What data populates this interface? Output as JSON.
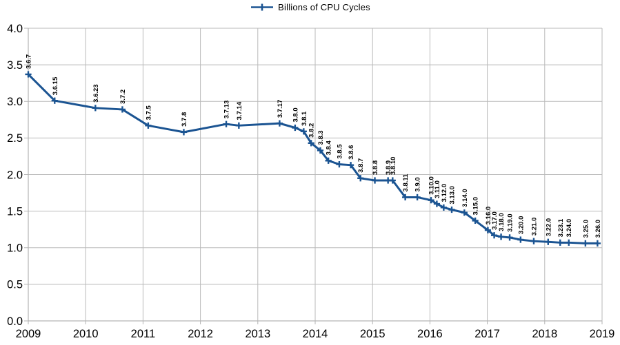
{
  "chart_data": {
    "type": "line",
    "title": "",
    "legend": "Billions of CPU Cycles",
    "legend_position": "top-center",
    "xlabel": "",
    "ylabel": "",
    "xlim": [
      2009,
      2019
    ],
    "ylim": [
      0.0,
      4.0
    ],
    "y_tick_step": 0.5,
    "grid": true,
    "x_ticks": [
      "2009",
      "2010",
      "2011",
      "2012",
      "2013",
      "2014",
      "2015",
      "2016",
      "2017",
      "2018",
      "2019"
    ],
    "y_ticks": [
      "0.0",
      "0.5",
      "1.0",
      "1.5",
      "2.0",
      "2.5",
      "3.0",
      "3.5",
      "4.0"
    ],
    "series": [
      {
        "name": "Billions of CPU Cycles",
        "marker": "plus",
        "color": "#1b5492",
        "points": [
          {
            "label": "3.6.7",
            "x": 2009.0,
            "y": 3.37
          },
          {
            "label": "3.6.15",
            "x": 2009.46,
            "y": 3.01
          },
          {
            "label": "3.6.23",
            "x": 2010.17,
            "y": 2.91
          },
          {
            "label": "3.7.2",
            "x": 2010.64,
            "y": 2.89
          },
          {
            "label": "3.7.5",
            "x": 2011.09,
            "y": 2.67
          },
          {
            "label": "3.7.8",
            "x": 2011.71,
            "y": 2.58
          },
          {
            "label": "3.7.13",
            "x": 2012.45,
            "y": 2.69
          },
          {
            "label": "3.7.14",
            "x": 2012.67,
            "y": 2.67
          },
          {
            "label": "3.7.17",
            "x": 2013.38,
            "y": 2.7
          },
          {
            "label": "3.8.0",
            "x": 2013.65,
            "y": 2.64
          },
          {
            "label": "3.8.1",
            "x": 2013.8,
            "y": 2.59
          },
          {
            "label": "3.8.2",
            "x": 2013.93,
            "y": 2.43
          },
          {
            "label": "3.8.3",
            "x": 2014.09,
            "y": 2.33
          },
          {
            "label": "3.8.4",
            "x": 2014.23,
            "y": 2.19
          },
          {
            "label": "3.8.5",
            "x": 2014.42,
            "y": 2.14
          },
          {
            "label": "3.8.6",
            "x": 2014.62,
            "y": 2.13
          },
          {
            "label": "3.8.7",
            "x": 2014.79,
            "y": 1.95
          },
          {
            "label": "3.8.8",
            "x": 2015.04,
            "y": 1.92
          },
          {
            "label": "3.8.9",
            "x": 2015.27,
            "y": 1.92
          },
          {
            "label": "3.8.10",
            "x": 2015.35,
            "y": 1.92
          },
          {
            "label": "3.8.11",
            "x": 2015.57,
            "y": 1.69
          },
          {
            "label": "3.9.0",
            "x": 2015.78,
            "y": 1.69
          },
          {
            "label": "3.10.0",
            "x": 2016.02,
            "y": 1.65
          },
          {
            "label": "3.11.0",
            "x": 2016.12,
            "y": 1.6
          },
          {
            "label": "3.12.0",
            "x": 2016.24,
            "y": 1.55
          },
          {
            "label": "3.13.0",
            "x": 2016.38,
            "y": 1.52
          },
          {
            "label": "3.14.0",
            "x": 2016.6,
            "y": 1.48
          },
          {
            "label": "3.15.0",
            "x": 2016.79,
            "y": 1.37
          },
          {
            "label": "3.16.0",
            "x": 2017.01,
            "y": 1.24
          },
          {
            "label": "3.17.0",
            "x": 2017.12,
            "y": 1.17
          },
          {
            "label": "3.18.0",
            "x": 2017.24,
            "y": 1.15
          },
          {
            "label": "3.19.0",
            "x": 2017.39,
            "y": 1.14
          },
          {
            "label": "3.20.0",
            "x": 2017.58,
            "y": 1.11
          },
          {
            "label": "3.21.0",
            "x": 2017.81,
            "y": 1.09
          },
          {
            "label": "3.22.0",
            "x": 2018.06,
            "y": 1.08
          },
          {
            "label": "3.23.1",
            "x": 2018.27,
            "y": 1.07
          },
          {
            "label": "3.24.0",
            "x": 2018.42,
            "y": 1.07
          },
          {
            "label": "3.25.0",
            "x": 2018.71,
            "y": 1.06
          },
          {
            "label": "3.26.0",
            "x": 2018.92,
            "y": 1.06
          }
        ]
      }
    ]
  },
  "colors": {
    "line": "#1b5492",
    "grid": "#b9b9b9",
    "axis": "#b3b3b3",
    "text": "#000000",
    "background": "#ffffff"
  }
}
